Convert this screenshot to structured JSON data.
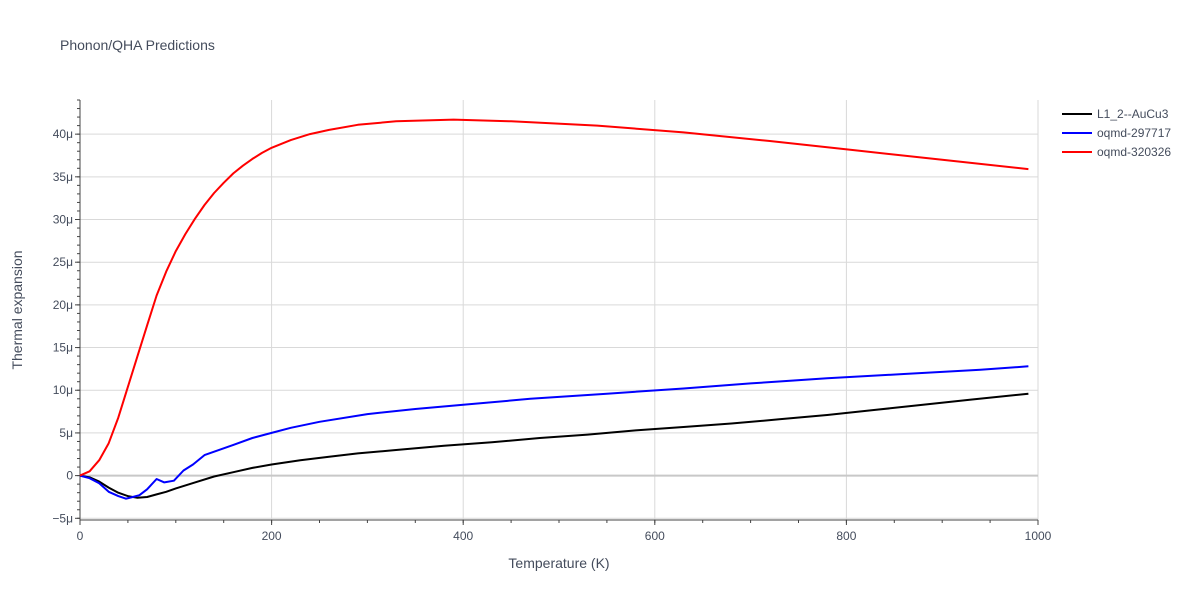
{
  "chart_data": {
    "type": "line",
    "title": "Phonon/QHA Predictions",
    "xlabel": "Temperature (K)",
    "ylabel": "Thermal expansion",
    "xlim": [
      0,
      1000
    ],
    "ylim": [
      -5.2,
      44
    ],
    "x_ticks": [
      0,
      200,
      400,
      600,
      800,
      1000
    ],
    "x_tick_labels": [
      "0",
      "200",
      "400",
      "600",
      "800",
      "1000"
    ],
    "y_ticks": [
      -5,
      0,
      5,
      10,
      15,
      20,
      25,
      30,
      35,
      40
    ],
    "y_tick_labels": [
      "−5μ",
      "0",
      "5μ",
      "10μ",
      "15μ",
      "20μ",
      "25μ",
      "30μ",
      "35μ",
      "40μ"
    ],
    "grid": true,
    "legend_position": "top-right",
    "series": [
      {
        "name": "L1_2--AuCu3",
        "color": "#000000",
        "x": [
          0,
          10,
          20,
          30,
          40,
          50,
          60,
          70,
          80,
          90,
          100,
          120,
          140,
          160,
          180,
          200,
          230,
          260,
          290,
          330,
          380,
          430,
          480,
          530,
          580,
          630,
          680,
          730,
          780,
          830,
          880,
          930,
          990
        ],
        "y": [
          0,
          -0.2,
          -0.7,
          -1.4,
          -2.0,
          -2.4,
          -2.6,
          -2.5,
          -2.2,
          -1.9,
          -1.5,
          -0.8,
          -0.1,
          0.4,
          0.9,
          1.3,
          1.8,
          2.2,
          2.6,
          3.0,
          3.5,
          3.9,
          4.4,
          4.8,
          5.3,
          5.7,
          6.1,
          6.6,
          7.1,
          7.7,
          8.3,
          8.9,
          9.6
        ]
      },
      {
        "name": "oqmd-297717",
        "color": "#0000ff",
        "x": [
          0,
          10,
          20,
          30,
          40,
          48,
          55,
          62,
          70,
          80,
          88,
          98,
          108,
          118,
          130,
          140,
          160,
          180,
          200,
          220,
          250,
          300,
          350,
          400,
          470,
          550,
          630,
          700,
          780,
          860,
          940,
          990
        ],
        "y": [
          0,
          -0.3,
          -0.9,
          -1.9,
          -2.4,
          -2.7,
          -2.5,
          -2.3,
          -1.6,
          -0.4,
          -0.8,
          -0.6,
          0.6,
          1.3,
          2.4,
          2.8,
          3.6,
          4.4,
          5.0,
          5.6,
          6.3,
          7.2,
          7.8,
          8.3,
          9.0,
          9.6,
          10.2,
          10.8,
          11.4,
          11.9,
          12.4,
          12.8
        ]
      },
      {
        "name": "oqmd-320326",
        "color": "#ff0000",
        "x": [
          0,
          10,
          20,
          30,
          40,
          50,
          60,
          70,
          80,
          90,
          100,
          110,
          120,
          130,
          140,
          150,
          160,
          170,
          180,
          190,
          200,
          220,
          240,
          260,
          290,
          330,
          390,
          450,
          540,
          630,
          720,
          810,
          900,
          990
        ],
        "y": [
          0,
          0.5,
          1.8,
          3.8,
          6.8,
          10.4,
          14.0,
          17.6,
          21.1,
          23.9,
          26.3,
          28.3,
          30.1,
          31.7,
          33.1,
          34.3,
          35.4,
          36.3,
          37.1,
          37.8,
          38.4,
          39.3,
          40.0,
          40.5,
          41.1,
          41.5,
          41.7,
          41.5,
          41.0,
          40.2,
          39.2,
          38.1,
          37.0,
          35.9
        ]
      }
    ]
  }
}
